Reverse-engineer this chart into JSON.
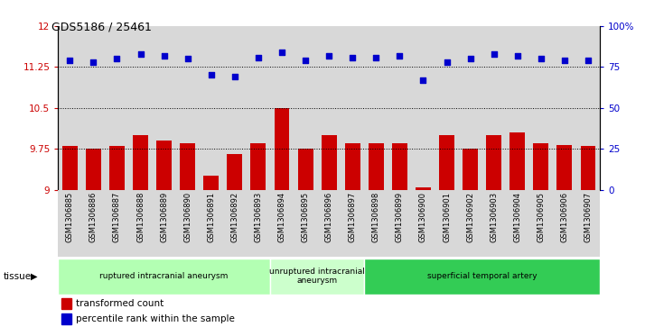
{
  "title": "GDS5186 / 25461",
  "samples": [
    "GSM1306885",
    "GSM1306886",
    "GSM1306887",
    "GSM1306888",
    "GSM1306889",
    "GSM1306890",
    "GSM1306891",
    "GSM1306892",
    "GSM1306893",
    "GSM1306894",
    "GSM1306895",
    "GSM1306896",
    "GSM1306897",
    "GSM1306898",
    "GSM1306899",
    "GSM1306900",
    "GSM1306901",
    "GSM1306902",
    "GSM1306903",
    "GSM1306904",
    "GSM1306905",
    "GSM1306906",
    "GSM1306907"
  ],
  "bar_values": [
    9.8,
    9.75,
    9.8,
    10.0,
    9.9,
    9.85,
    9.25,
    9.65,
    9.85,
    10.5,
    9.75,
    10.0,
    9.85,
    9.85,
    9.85,
    9.05,
    10.0,
    9.75,
    10.0,
    10.05,
    9.85,
    9.82,
    9.8
  ],
  "percentile_values": [
    79,
    78,
    80,
    83,
    82,
    80,
    70,
    69,
    81,
    84,
    79,
    82,
    81,
    81,
    82,
    67,
    78,
    80,
    83,
    82,
    80,
    79,
    79
  ],
  "bar_color": "#cc0000",
  "percentile_color": "#0000cc",
  "ylim_left": [
    9,
    12
  ],
  "ylim_right": [
    0,
    100
  ],
  "yticks_left": [
    9,
    9.75,
    10.5,
    11.25,
    12
  ],
  "ytick_labels_left": [
    "9",
    "9.75",
    "10.5",
    "11.25",
    "12"
  ],
  "yticks_right": [
    0,
    25,
    50,
    75,
    100
  ],
  "ytick_labels_right": [
    "0",
    "25",
    "50",
    "75",
    "100%"
  ],
  "hlines": [
    9.75,
    10.5,
    11.25
  ],
  "groups": [
    {
      "label": "ruptured intracranial aneurysm",
      "start": 0,
      "end": 9,
      "color": "#b3ffb3"
    },
    {
      "label": "unruptured intracranial\naneurysm",
      "start": 9,
      "end": 13,
      "color": "#ccffcc"
    },
    {
      "label": "superficial temporal artery",
      "start": 13,
      "end": 23,
      "color": "#33cc55"
    }
  ],
  "tissue_label": "tissue",
  "legend_bar_label": "transformed count",
  "legend_dot_label": "percentile rank within the sample",
  "cell_bg_color": "#d8d8d8",
  "plot_bg_color": "#ffffff"
}
